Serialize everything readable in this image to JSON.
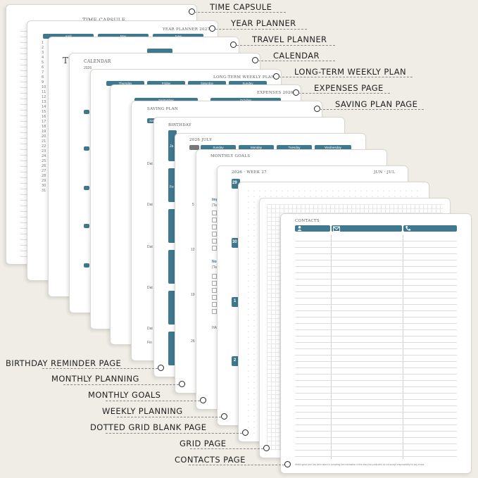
{
  "labels_right": [
    "TIME CAPSULE",
    "YEAR PLANNER",
    "TRAVEL PLANNER",
    "CALENDAR",
    "LONG-TERM WEEKLY PLAN",
    "EXPENSES PAGE",
    "SAVING PLAN PAGE"
  ],
  "labels_left": [
    "BIRTHDAY REMINDER PAGE",
    "MONTHLY PLANNING",
    "MONTHLY GOALS",
    "WEEKLY PLANNING",
    "DOTTED GRID BLANK PAGE",
    "GRID PAGE",
    "CONTACTS PAGE"
  ],
  "pages": {
    "time_capsule": {
      "title": "TIME CAPSULE"
    },
    "year_planner": {
      "title": "YEAR PLANNER 2027",
      "months": [
        "April",
        "May",
        "June"
      ]
    },
    "travel": {
      "title_fragment": "TR"
    },
    "calendar": {
      "title": "CALENDAR",
      "year": "2026"
    },
    "weekly_plan": {
      "title": "LONG-TERM WEEKLY PLAN",
      "days": [
        "Thursday",
        "Friday",
        "Saturday",
        "Sunday"
      ]
    },
    "expenses": {
      "title": "EXPENSES 2026",
      "months": [
        "September",
        "October"
      ]
    },
    "saving": {
      "title": "SAVING PLAN",
      "tab": "Sav",
      "rows": [
        "Dat",
        "Dat",
        "Dat",
        "Dat",
        "Dat",
        "Fin"
      ]
    },
    "birthday": {
      "title": "BIRTHDAY",
      "tabs": [
        "Ja",
        "Fe"
      ]
    },
    "monthly": {
      "title": "2026 JULY",
      "days": [
        "Sunday",
        "Monday",
        "Tuesday",
        "Wednesday"
      ],
      "week_nums": [
        "5",
        "12",
        "19",
        "26"
      ]
    },
    "goals": {
      "title": "MONTHLY GOALS",
      "section1": "Imp",
      "section1_sub": "(Tas",
      "section2": "Not",
      "section2_sub": "(Tas",
      "section3": "HAB"
    },
    "weekly": {
      "title": "2026 · WEEK 27",
      "range": "JUN · JUL",
      "days": [
        "29",
        "30",
        "1",
        "2"
      ]
    },
    "contacts": {
      "title": "CONTACTS",
      "footer": "Whilst great care has been taken in compiling the information in this diary the publishers do not accept responsibility for any errors."
    }
  },
  "icons": [
    "person-icon",
    "envelope-icon",
    "phone-icon"
  ],
  "colors": {
    "accent": "#3f7990",
    "background": "#efede6"
  }
}
